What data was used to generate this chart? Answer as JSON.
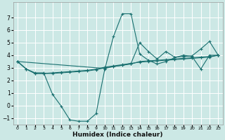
{
  "xlabel": "Humidex (Indice chaleur)",
  "xlim": [
    -0.5,
    23.5
  ],
  "ylim": [
    -1.5,
    8.2
  ],
  "yticks": [
    -1,
    0,
    1,
    2,
    3,
    4,
    5,
    6,
    7
  ],
  "xticks": [
    0,
    1,
    2,
    3,
    4,
    5,
    6,
    7,
    8,
    9,
    10,
    11,
    12,
    13,
    14,
    15,
    16,
    17,
    18,
    19,
    20,
    21,
    22,
    23
  ],
  "bg_color": "#cce8e5",
  "grid_color": "#ffffff",
  "line_color": "#1a7070",
  "lines": [
    {
      "x": [
        0,
        1,
        2,
        3,
        4,
        5,
        6,
        7,
        8,
        9,
        10,
        11,
        12,
        13,
        14,
        15,
        16,
        17,
        18,
        19,
        20,
        21,
        22,
        23
      ],
      "y": [
        3.5,
        2.9,
        2.6,
        2.6,
        0.9,
        -0.05,
        -1.15,
        -1.25,
        -1.25,
        -0.65,
        2.9,
        5.5,
        7.3,
        7.3,
        4.1,
        3.6,
        3.3,
        3.5,
        3.8,
        4.0,
        3.9,
        2.9,
        4.0,
        4.0
      ]
    },
    {
      "x": [
        0,
        1,
        2,
        3,
        4,
        5,
        6,
        7,
        8,
        9,
        10,
        11,
        12,
        13,
        14,
        15,
        16,
        17,
        18,
        19,
        20,
        21,
        22,
        23
      ],
      "y": [
        3.5,
        2.9,
        2.55,
        2.55,
        2.55,
        2.6,
        2.65,
        2.7,
        2.75,
        2.85,
        3.0,
        3.1,
        3.2,
        3.3,
        3.5,
        3.55,
        3.6,
        3.65,
        3.7,
        3.75,
        3.8,
        3.85,
        3.9,
        4.0
      ]
    },
    {
      "x": [
        0,
        1,
        2,
        3,
        4,
        5,
        6,
        7,
        8,
        9,
        10,
        11,
        12,
        13,
        14,
        15,
        16,
        17,
        18,
        19,
        20,
        21,
        22,
        23
      ],
      "y": [
        3.5,
        2.9,
        2.55,
        2.55,
        2.6,
        2.65,
        2.7,
        2.75,
        2.8,
        2.9,
        3.05,
        3.15,
        3.25,
        3.35,
        3.45,
        3.5,
        3.55,
        3.6,
        3.65,
        3.7,
        3.75,
        3.8,
        3.85,
        4.0
      ]
    },
    {
      "x": [
        0,
        10,
        11,
        12,
        13,
        14,
        15,
        16,
        17,
        18,
        19,
        20,
        21,
        22,
        23
      ],
      "y": [
        3.5,
        2.95,
        3.1,
        3.2,
        3.35,
        5.0,
        4.3,
        3.7,
        4.3,
        3.85,
        3.9,
        3.95,
        4.5,
        5.1,
        4.0
      ]
    }
  ]
}
